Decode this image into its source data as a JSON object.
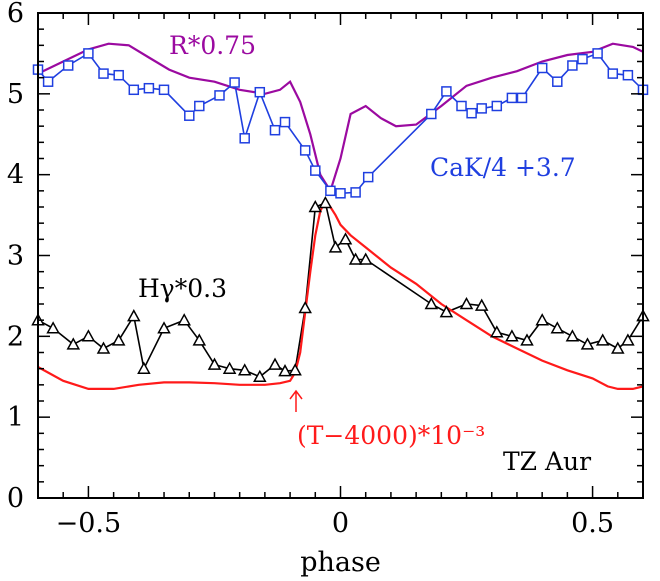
{
  "chart_data": {
    "type": "line",
    "xlabel": "phase",
    "ylabel": "",
    "xlim": [
      -0.6,
      0.6
    ],
    "ylim": [
      0,
      6
    ],
    "xticks": [
      -0.5,
      0,
      0.5
    ],
    "xtick_labels": [
      "−0.5",
      "0",
      "0.5"
    ],
    "yticks": [
      0,
      1,
      2,
      3,
      4,
      5,
      6
    ],
    "ytick_labels": [
      "0",
      "1",
      "2",
      "3",
      "4",
      "5",
      "6"
    ],
    "grid": false,
    "series": [
      {
        "name": "R*0.75",
        "color": "#9b0aa0",
        "marker": "none",
        "x": [
          -0.6,
          -0.55,
          -0.5,
          -0.46,
          -0.42,
          -0.38,
          -0.34,
          -0.3,
          -0.25,
          -0.2,
          -0.15,
          -0.12,
          -0.1,
          -0.08,
          -0.06,
          -0.04,
          -0.02,
          0.0,
          0.02,
          0.05,
          0.08,
          0.11,
          0.15,
          0.2,
          0.25,
          0.3,
          0.35,
          0.4,
          0.45,
          0.5,
          0.54,
          0.58,
          0.6
        ],
        "y": [
          5.25,
          5.4,
          5.55,
          5.62,
          5.6,
          5.45,
          5.3,
          5.2,
          5.15,
          5.05,
          5.0,
          5.05,
          5.15,
          4.9,
          4.5,
          4.0,
          3.8,
          4.2,
          4.75,
          4.85,
          4.7,
          4.6,
          4.62,
          4.85,
          5.1,
          5.2,
          5.28,
          5.4,
          5.48,
          5.52,
          5.62,
          5.58,
          5.52
        ]
      },
      {
        "name": "CaK/4 +3.7",
        "color": "#1f3fe0",
        "marker": "square",
        "x": [
          -0.6,
          -0.58,
          -0.54,
          -0.5,
          -0.47,
          -0.44,
          -0.41,
          -0.38,
          -0.35,
          -0.3,
          -0.28,
          -0.24,
          -0.21,
          -0.19,
          -0.16,
          -0.13,
          -0.11,
          -0.07,
          -0.05,
          -0.02,
          0.0,
          0.03,
          0.055,
          0.18,
          0.21,
          0.24,
          0.26,
          0.28,
          0.31,
          0.34,
          0.36,
          0.4,
          0.43,
          0.46,
          0.48,
          0.51,
          0.54,
          0.57,
          0.6
        ],
        "y": [
          5.3,
          5.15,
          5.35,
          5.5,
          5.25,
          5.23,
          5.05,
          5.07,
          5.05,
          4.73,
          4.85,
          4.98,
          5.14,
          4.45,
          5.02,
          4.55,
          4.65,
          4.3,
          4.05,
          3.8,
          3.77,
          3.78,
          3.97,
          4.75,
          5.03,
          4.85,
          4.76,
          4.82,
          4.85,
          4.95,
          4.95,
          5.32,
          5.15,
          5.35,
          5.43,
          5.5,
          5.25,
          5.23,
          5.05
        ]
      },
      {
        "name": "Hγ*0.3",
        "color": "#000000",
        "marker": "triangle",
        "x": [
          -0.6,
          -0.57,
          -0.53,
          -0.5,
          -0.47,
          -0.44,
          -0.41,
          -0.39,
          -0.35,
          -0.31,
          -0.28,
          -0.25,
          -0.22,
          -0.19,
          -0.16,
          -0.13,
          -0.11,
          -0.09,
          -0.07,
          -0.05,
          -0.03,
          -0.01,
          0.01,
          0.03,
          0.05,
          0.18,
          0.21,
          0.25,
          0.28,
          0.31,
          0.34,
          0.37,
          0.4,
          0.43,
          0.46,
          0.49,
          0.52,
          0.55,
          0.57,
          0.6
        ],
        "y": [
          2.2,
          2.1,
          1.9,
          2.0,
          1.85,
          1.95,
          2.25,
          1.6,
          2.1,
          2.2,
          1.95,
          1.65,
          1.6,
          1.58,
          1.5,
          1.65,
          1.57,
          1.58,
          2.35,
          3.6,
          3.65,
          3.1,
          3.2,
          2.95,
          2.95,
          2.4,
          2.3,
          2.4,
          2.38,
          2.05,
          2.0,
          1.95,
          2.2,
          2.1,
          2.0,
          1.9,
          1.95,
          1.85,
          1.95,
          2.25
        ]
      },
      {
        "name": "(T−4000)*10⁻³",
        "color": "#ff1a1a",
        "marker": "none",
        "x": [
          -0.6,
          -0.55,
          -0.5,
          -0.45,
          -0.4,
          -0.35,
          -0.3,
          -0.25,
          -0.2,
          -0.15,
          -0.12,
          -0.1,
          -0.09,
          -0.08,
          -0.07,
          -0.06,
          -0.05,
          -0.04,
          -0.03,
          -0.02,
          -0.01,
          0.0,
          0.02,
          0.05,
          0.1,
          0.15,
          0.2,
          0.25,
          0.3,
          0.35,
          0.4,
          0.45,
          0.5,
          0.53,
          0.55,
          0.58,
          0.6
        ],
        "y": [
          1.62,
          1.45,
          1.35,
          1.35,
          1.4,
          1.43,
          1.43,
          1.42,
          1.4,
          1.4,
          1.42,
          1.45,
          1.55,
          1.8,
          2.3,
          2.8,
          3.25,
          3.55,
          3.68,
          3.6,
          3.5,
          3.38,
          3.25,
          3.1,
          2.85,
          2.65,
          2.4,
          2.2,
          2.0,
          1.85,
          1.7,
          1.58,
          1.48,
          1.38,
          1.35,
          1.35,
          1.38
        ]
      }
    ],
    "annotations": {
      "r_label": "R*0.75",
      "cak_label": "CaK/4 +3.7",
      "hgamma_label": "Hγ*0.3",
      "temp_label": "(T−4000)*10⁻³",
      "star_label": "TZ Aur"
    }
  }
}
